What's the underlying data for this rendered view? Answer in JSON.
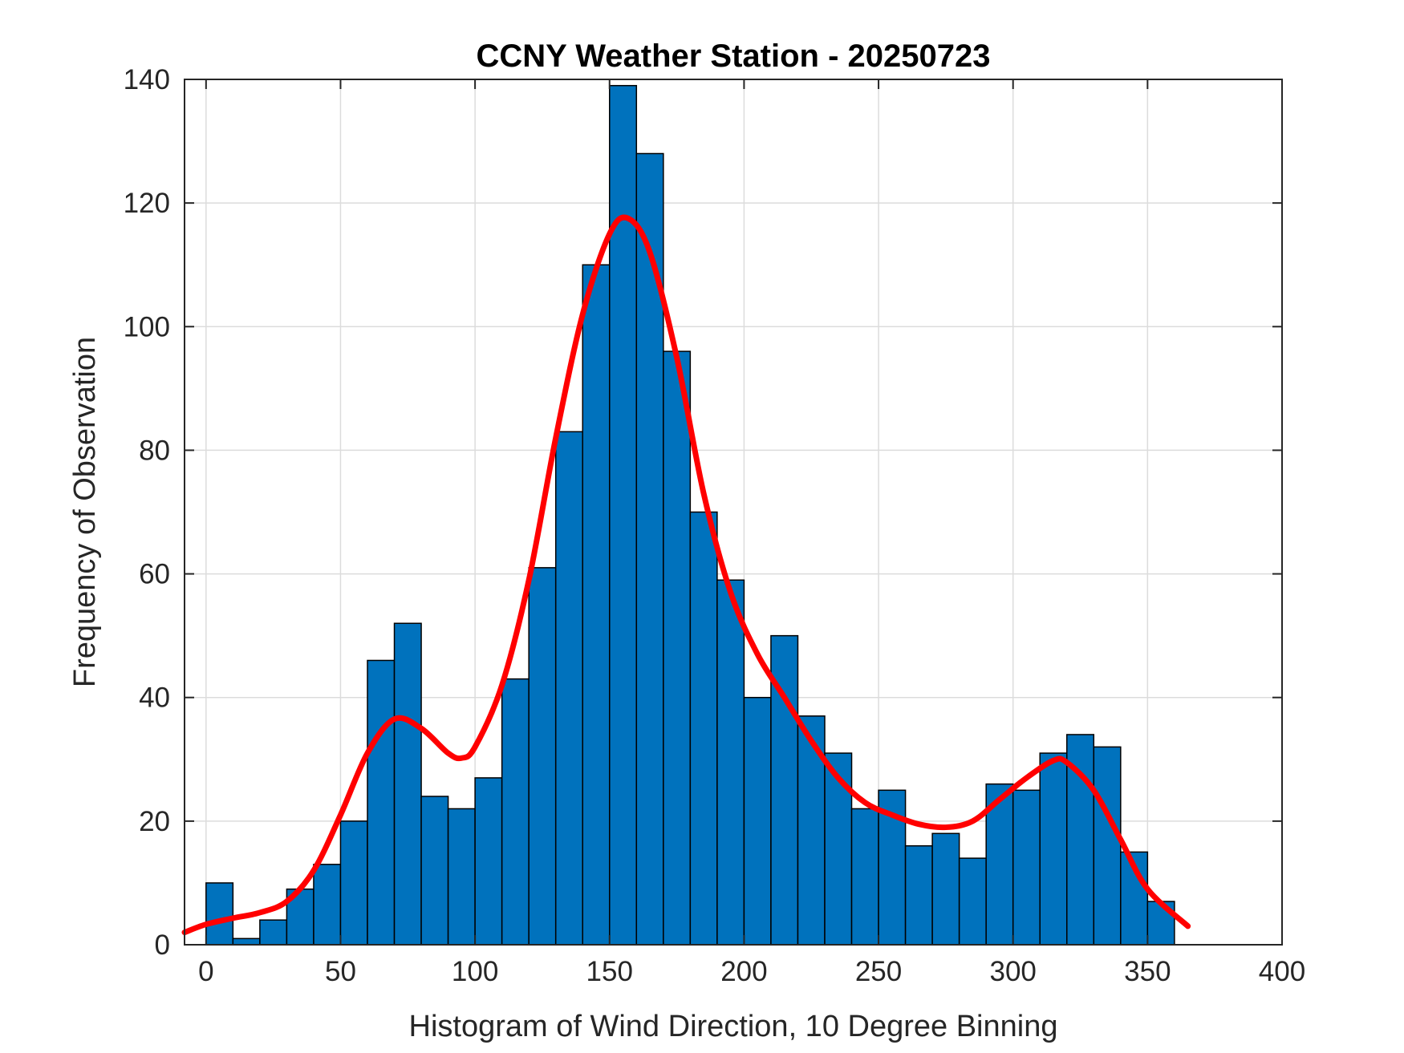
{
  "chart_data": {
    "type": "bar",
    "title": "CCNY Weather Station - 20250723",
    "xlabel": "Histogram of Wind Direction, 10 Degree Binning",
    "ylabel": "Frequency of Observation",
    "xlim": [
      -8,
      400
    ],
    "ylim": [
      0,
      140
    ],
    "xticks": [
      0,
      50,
      100,
      150,
      200,
      250,
      300,
      350,
      400
    ],
    "yticks": [
      0,
      20,
      40,
      60,
      80,
      100,
      120,
      140
    ],
    "grid": true,
    "bin_width": 10,
    "bin_edges_start": [
      0,
      10,
      20,
      30,
      40,
      50,
      60,
      70,
      80,
      90,
      100,
      110,
      120,
      130,
      140,
      150,
      160,
      170,
      180,
      190,
      200,
      210,
      220,
      230,
      240,
      250,
      260,
      270,
      280,
      290,
      300,
      310,
      320,
      330,
      340,
      350
    ],
    "counts": [
      10,
      1,
      4,
      9,
      13,
      20,
      46,
      52,
      24,
      22,
      27,
      43,
      61,
      83,
      110,
      139,
      128,
      96,
      70,
      59,
      40,
      50,
      37,
      31,
      22,
      25,
      16,
      18,
      14,
      26,
      25,
      31,
      34,
      32,
      15,
      7
    ],
    "bar_color": "#0072BD",
    "fit_curve": {
      "color": "#FF0000",
      "x": [
        -8,
        0,
        10,
        20,
        30,
        40,
        50,
        60,
        70,
        80,
        90,
        95,
        100,
        110,
        120,
        130,
        140,
        150,
        157,
        165,
        175,
        185,
        195,
        205,
        215,
        225,
        235,
        245,
        255,
        265,
        275,
        285,
        295,
        305,
        315,
        320,
        330,
        340,
        350,
        365
      ],
      "y": [
        2,
        3.3,
        4.3,
        5.2,
        7,
        12,
        21,
        31,
        36.5,
        35,
        31,
        30.2,
        32,
        42,
        59,
        82,
        102,
        115,
        117.5,
        112,
        95,
        73,
        57,
        47,
        40,
        33,
        27,
        23,
        21,
        19.5,
        19,
        20,
        23.5,
        27,
        29.8,
        29.5,
        25,
        17,
        9,
        3
      ]
    }
  }
}
